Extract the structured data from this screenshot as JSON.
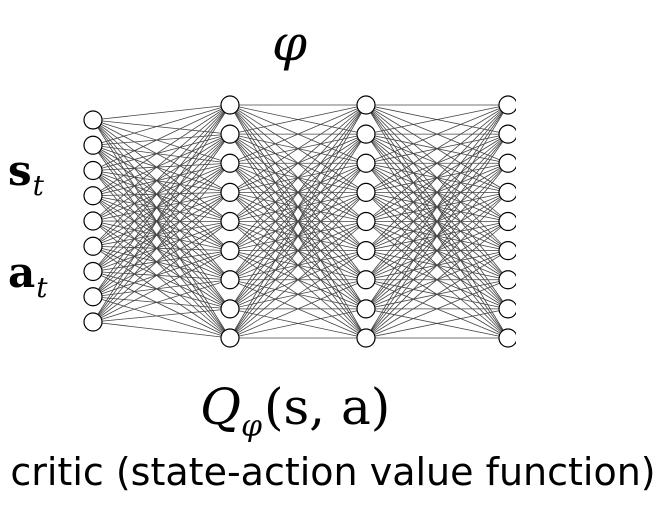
{
  "diagram": {
    "parameter_symbol": "φ",
    "input_labels": {
      "state": {
        "base": "s",
        "subscript": "t"
      },
      "action": {
        "base": "a",
        "subscript": "t"
      }
    },
    "output_label": {
      "function": "Q",
      "subscript": "φ",
      "args": "(s, a)"
    },
    "caption": "critic (state-action value function)",
    "network": {
      "layer_node_counts": [
        9,
        9,
        9,
        9
      ],
      "fully_connected": true,
      "node_fill": "#ffffff",
      "edge_color": "#444444"
    }
  }
}
